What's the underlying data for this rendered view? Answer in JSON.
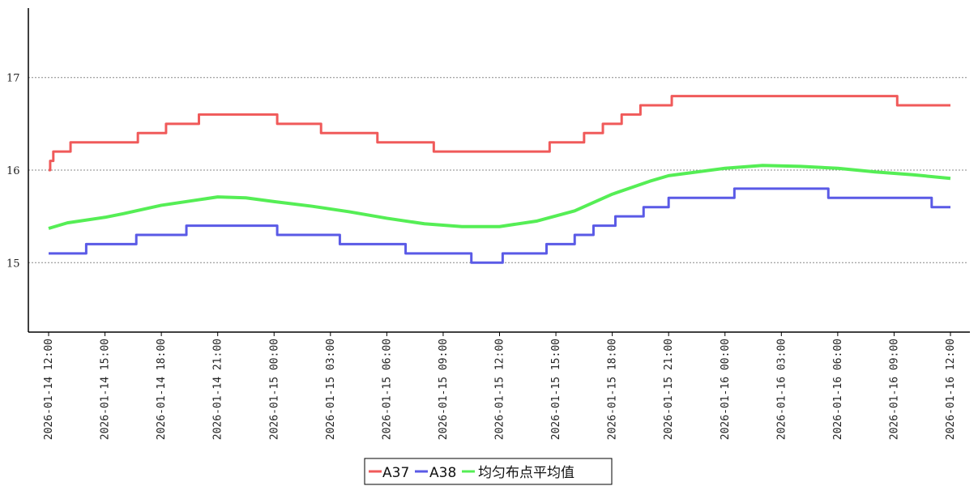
{
  "chart_data": {
    "type": "line",
    "title": "",
    "xlabel": "",
    "ylabel": "",
    "ylim": [
      14.25,
      17.75
    ],
    "yticks": [
      15,
      16,
      17
    ],
    "grid": "horizontal dotted at y ticks",
    "legend_position": "bottom-center",
    "x_tick_labels": [
      "2026-01-14 12:00",
      "2026-01-14 15:00",
      "2026-01-14 18:00",
      "2026-01-14 21:00",
      "2026-01-15 00:00",
      "2026-01-15 03:00",
      "2026-01-15 06:00",
      "2026-01-15 09:00",
      "2026-01-15 12:00",
      "2026-01-15 15:00",
      "2026-01-15 18:00",
      "2026-01-15 21:00",
      "2026-01-16 00:00",
      "2026-01-16 03:00",
      "2026-01-16 06:00",
      "2026-01-16 09:00",
      "2026-01-16 12:00"
    ],
    "series": [
      {
        "name": "A37",
        "color": "#f05a5a",
        "points": [
          [
            "2026-01-14 12:00",
            16.0
          ],
          [
            "2026-01-14 12:05",
            16.1
          ],
          [
            "2026-01-14 12:15",
            16.2
          ],
          [
            "2026-01-14 13:10",
            16.3
          ],
          [
            "2026-01-14 16:45",
            16.4
          ],
          [
            "2026-01-14 18:15",
            16.5
          ],
          [
            "2026-01-14 20:00",
            16.6
          ],
          [
            "2026-01-15 00:10",
            16.5
          ],
          [
            "2026-01-15 02:30",
            16.4
          ],
          [
            "2026-01-15 05:30",
            16.3
          ],
          [
            "2026-01-15 08:30",
            16.2
          ],
          [
            "2026-01-15 14:40",
            16.3
          ],
          [
            "2026-01-15 16:30",
            16.4
          ],
          [
            "2026-01-15 17:30",
            16.5
          ],
          [
            "2026-01-15 18:30",
            16.6
          ],
          [
            "2026-01-15 19:30",
            16.7
          ],
          [
            "2026-01-15 21:10",
            16.8
          ],
          [
            "2026-01-16 09:10",
            16.7
          ],
          [
            "2026-01-16 12:00",
            16.7
          ]
        ]
      },
      {
        "name": "A38",
        "color": "#5a5ae6",
        "points": [
          [
            "2026-01-14 12:00",
            15.1
          ],
          [
            "2026-01-14 14:00",
            15.2
          ],
          [
            "2026-01-14 16:40",
            15.3
          ],
          [
            "2026-01-14 19:20",
            15.4
          ],
          [
            "2026-01-15 00:10",
            15.3
          ],
          [
            "2026-01-15 03:30",
            15.2
          ],
          [
            "2026-01-15 07:00",
            15.1
          ],
          [
            "2026-01-15 10:30",
            15.0
          ],
          [
            "2026-01-15 12:10",
            15.1
          ],
          [
            "2026-01-15 14:30",
            15.2
          ],
          [
            "2026-01-15 16:00",
            15.3
          ],
          [
            "2026-01-15 17:00",
            15.4
          ],
          [
            "2026-01-15 18:10",
            15.5
          ],
          [
            "2026-01-15 19:40",
            15.6
          ],
          [
            "2026-01-15 21:00",
            15.7
          ],
          [
            "2026-01-16 00:30",
            15.8
          ],
          [
            "2026-01-16 05:30",
            15.7
          ],
          [
            "2026-01-16 11:00",
            15.6
          ],
          [
            "2026-01-16 12:00",
            15.6
          ]
        ]
      },
      {
        "name": "均匀布点平均值",
        "color": "#55ee55",
        "points": [
          [
            "2026-01-14 12:00",
            15.37
          ],
          [
            "2026-01-14 13:00",
            15.43
          ],
          [
            "2026-01-14 15:00",
            15.49
          ],
          [
            "2026-01-14 16:00",
            15.53
          ],
          [
            "2026-01-14 18:00",
            15.62
          ],
          [
            "2026-01-14 20:00",
            15.68
          ],
          [
            "2026-01-14 21:00",
            15.71
          ],
          [
            "2026-01-14 22:30",
            15.7
          ],
          [
            "2026-01-15 00:00",
            15.66
          ],
          [
            "2026-01-15 02:00",
            15.61
          ],
          [
            "2026-01-15 04:00",
            15.55
          ],
          [
            "2026-01-15 06:00",
            15.48
          ],
          [
            "2026-01-15 08:00",
            15.42
          ],
          [
            "2026-01-15 10:00",
            15.39
          ],
          [
            "2026-01-15 12:00",
            15.39
          ],
          [
            "2026-01-15 14:00",
            15.45
          ],
          [
            "2026-01-15 16:00",
            15.56
          ],
          [
            "2026-01-15 18:00",
            15.74
          ],
          [
            "2026-01-15 20:00",
            15.88
          ],
          [
            "2026-01-15 21:00",
            15.94
          ],
          [
            "2026-01-16 00:00",
            16.02
          ],
          [
            "2026-01-16 02:00",
            16.05
          ],
          [
            "2026-01-16 04:00",
            16.04
          ],
          [
            "2026-01-16 06:00",
            16.02
          ],
          [
            "2026-01-16 08:00",
            15.98
          ],
          [
            "2026-01-16 10:00",
            15.95
          ],
          [
            "2026-01-16 12:00",
            15.91
          ]
        ]
      }
    ]
  }
}
